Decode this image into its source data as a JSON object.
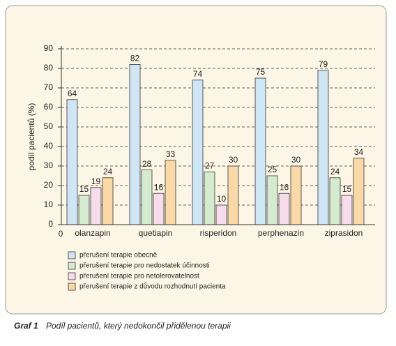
{
  "chart_data": {
    "type": "bar",
    "y_label": "podíl pacientů (%)",
    "x_origin_label": "0",
    "categories": [
      "olanzapin",
      "quetiapin",
      "risperidon",
      "perphenazin",
      "ziprasidon"
    ],
    "series": [
      {
        "name": "přerušení terapie obecně",
        "color": "#cfe6f7",
        "values": [
          64,
          82,
          74,
          75,
          79
        ]
      },
      {
        "name": "přerušení terapie pro nedostatek účinnosti",
        "color": "#d5ebd0",
        "values": [
          15,
          28,
          27,
          25,
          24
        ]
      },
      {
        "name": "přerušení terapie pro netolerovatelnost",
        "color": "#f7dceb",
        "values": [
          19,
          16,
          10,
          16,
          15
        ]
      },
      {
        "name": "přerušení terapie z důvodu rozhodnutí pacienta",
        "color": "#fbd9a6",
        "values": [
          24,
          33,
          30,
          30,
          34
        ]
      }
    ],
    "ylim": [
      0,
      90
    ],
    "yticks": [
      0,
      10,
      20,
      30,
      40,
      50,
      60,
      70,
      80,
      90
    ],
    "grid": true,
    "caption": {
      "label": "Graf 1",
      "text": "Podíl pacientů, který nedokončil přidělenou terapii"
    }
  }
}
